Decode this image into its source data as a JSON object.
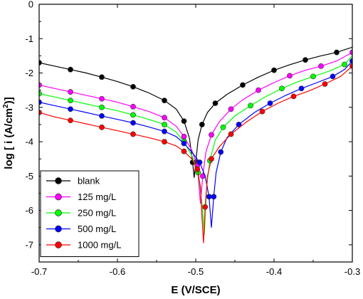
{
  "chart_data": {
    "type": "line",
    "title": "",
    "xlabel": "E (V/SCE)",
    "ylabel_main": "log [ i (A/cm",
    "ylabel_sup": "2",
    "ylabel_tail": ")]",
    "xlim": [
      -0.7,
      -0.3
    ],
    "ylim": [
      -7.5,
      0
    ],
    "x_ticks": [
      "-0.7",
      "-0.6",
      "-0.5",
      "-0.4",
      "-0.3"
    ],
    "x_tick_values": [
      -0.7,
      -0.6,
      -0.5,
      -0.4,
      -0.3
    ],
    "y_ticks": [
      "0",
      "-1",
      "-2",
      "-3",
      "-4",
      "-5",
      "-6",
      "-7"
    ],
    "y_tick_values": [
      0,
      -1,
      -2,
      -3,
      -4,
      -5,
      -6,
      -7
    ],
    "grid": false,
    "legend_position": "bottom-left",
    "series": [
      {
        "name": "blank",
        "color": "#000000",
        "points": [
          [
            -0.7,
            -1.7
          ],
          [
            -0.68,
            -1.8
          ],
          [
            -0.66,
            -1.9
          ],
          [
            -0.64,
            -2.0
          ],
          [
            -0.62,
            -2.12
          ],
          [
            -0.6,
            -2.25
          ],
          [
            -0.58,
            -2.4
          ],
          [
            -0.56,
            -2.58
          ],
          [
            -0.54,
            -2.8
          ],
          [
            -0.525,
            -3.05
          ],
          [
            -0.515,
            -3.4
          ],
          [
            -0.508,
            -3.9
          ],
          [
            -0.504,
            -4.6
          ],
          [
            -0.502,
            -5.05
          ],
          [
            -0.5,
            -4.6
          ],
          [
            -0.497,
            -3.95
          ],
          [
            -0.492,
            -3.5
          ],
          [
            -0.485,
            -3.15
          ],
          [
            -0.475,
            -2.88
          ],
          [
            -0.46,
            -2.62
          ],
          [
            -0.44,
            -2.35
          ],
          [
            -0.42,
            -2.12
          ],
          [
            -0.4,
            -1.92
          ],
          [
            -0.38,
            -1.76
          ],
          [
            -0.36,
            -1.62
          ],
          [
            -0.34,
            -1.5
          ],
          [
            -0.32,
            -1.4
          ],
          [
            -0.3,
            -1.25
          ]
        ]
      },
      {
        "name": "125  mg/L",
        "color": "#ff00ff",
        "points": [
          [
            -0.7,
            -2.35
          ],
          [
            -0.68,
            -2.45
          ],
          [
            -0.66,
            -2.55
          ],
          [
            -0.64,
            -2.65
          ],
          [
            -0.62,
            -2.75
          ],
          [
            -0.6,
            -2.85
          ],
          [
            -0.58,
            -2.98
          ],
          [
            -0.56,
            -3.12
          ],
          [
            -0.54,
            -3.3
          ],
          [
            -0.525,
            -3.55
          ],
          [
            -0.515,
            -3.85
          ],
          [
            -0.505,
            -4.25
          ],
          [
            -0.498,
            -4.7
          ],
          [
            -0.494,
            -5.8
          ],
          [
            -0.491,
            -5.0
          ],
          [
            -0.487,
            -4.3
          ],
          [
            -0.48,
            -3.8
          ],
          [
            -0.47,
            -3.42
          ],
          [
            -0.455,
            -3.05
          ],
          [
            -0.44,
            -2.78
          ],
          [
            -0.42,
            -2.5
          ],
          [
            -0.4,
            -2.28
          ],
          [
            -0.38,
            -2.08
          ],
          [
            -0.36,
            -1.92
          ],
          [
            -0.34,
            -1.8
          ],
          [
            -0.32,
            -1.65
          ],
          [
            -0.3,
            -1.4
          ]
        ]
      },
      {
        "name": "250  mg/L",
        "color": "#00ff00",
        "points": [
          [
            -0.7,
            -2.6
          ],
          [
            -0.68,
            -2.7
          ],
          [
            -0.66,
            -2.8
          ],
          [
            -0.64,
            -2.9
          ],
          [
            -0.62,
            -3.0
          ],
          [
            -0.6,
            -3.1
          ],
          [
            -0.58,
            -3.22
          ],
          [
            -0.56,
            -3.35
          ],
          [
            -0.54,
            -3.5
          ],
          [
            -0.525,
            -3.72
          ],
          [
            -0.515,
            -4.0
          ],
          [
            -0.505,
            -4.4
          ],
          [
            -0.497,
            -4.9
          ],
          [
            -0.492,
            -5.8
          ],
          [
            -0.489,
            -6.7
          ],
          [
            -0.486,
            -5.3
          ],
          [
            -0.482,
            -4.55
          ],
          [
            -0.475,
            -3.95
          ],
          [
            -0.465,
            -3.58
          ],
          [
            -0.45,
            -3.25
          ],
          [
            -0.43,
            -2.95
          ],
          [
            -0.41,
            -2.68
          ],
          [
            -0.39,
            -2.45
          ],
          [
            -0.37,
            -2.26
          ],
          [
            -0.35,
            -2.1
          ],
          [
            -0.33,
            -1.95
          ],
          [
            -0.31,
            -1.75
          ],
          [
            -0.3,
            -1.5
          ]
        ]
      },
      {
        "name": "500  mg/L",
        "color": "#0000ff",
        "points": [
          [
            -0.7,
            -2.85
          ],
          [
            -0.68,
            -2.95
          ],
          [
            -0.66,
            -3.05
          ],
          [
            -0.64,
            -3.15
          ],
          [
            -0.62,
            -3.25
          ],
          [
            -0.6,
            -3.35
          ],
          [
            -0.58,
            -3.45
          ],
          [
            -0.56,
            -3.57
          ],
          [
            -0.54,
            -3.7
          ],
          [
            -0.525,
            -3.85
          ],
          [
            -0.515,
            -4.05
          ],
          [
            -0.505,
            -4.3
          ],
          [
            -0.495,
            -4.6
          ],
          [
            -0.488,
            -5.0
          ],
          [
            -0.483,
            -5.6
          ],
          [
            -0.48,
            -6.5
          ],
          [
            -0.477,
            -5.6
          ],
          [
            -0.474,
            -4.9
          ],
          [
            -0.468,
            -4.3
          ],
          [
            -0.46,
            -3.88
          ],
          [
            -0.445,
            -3.5
          ],
          [
            -0.425,
            -3.15
          ],
          [
            -0.405,
            -2.88
          ],
          [
            -0.385,
            -2.65
          ],
          [
            -0.365,
            -2.45
          ],
          [
            -0.345,
            -2.28
          ],
          [
            -0.325,
            -2.1
          ],
          [
            -0.31,
            -1.9
          ],
          [
            -0.3,
            -1.65
          ]
        ]
      },
      {
        "name": "1000 mg/L",
        "color": "#ff0000",
        "points": [
          [
            -0.7,
            -3.15
          ],
          [
            -0.68,
            -3.28
          ],
          [
            -0.66,
            -3.38
          ],
          [
            -0.64,
            -3.48
          ],
          [
            -0.62,
            -3.58
          ],
          [
            -0.6,
            -3.68
          ],
          [
            -0.58,
            -3.78
          ],
          [
            -0.56,
            -3.88
          ],
          [
            -0.54,
            -4.0
          ],
          [
            -0.525,
            -4.12
          ],
          [
            -0.515,
            -4.28
          ],
          [
            -0.505,
            -4.5
          ],
          [
            -0.498,
            -4.8
          ],
          [
            -0.494,
            -5.3
          ],
          [
            -0.492,
            -6.2
          ],
          [
            -0.49,
            -6.95
          ],
          [
            -0.488,
            -5.9
          ],
          [
            -0.485,
            -5.0
          ],
          [
            -0.48,
            -4.5
          ],
          [
            -0.47,
            -4.15
          ],
          [
            -0.455,
            -3.78
          ],
          [
            -0.435,
            -3.42
          ],
          [
            -0.415,
            -3.12
          ],
          [
            -0.395,
            -2.88
          ],
          [
            -0.375,
            -2.68
          ],
          [
            -0.355,
            -2.52
          ],
          [
            -0.335,
            -2.32
          ],
          [
            -0.315,
            -2.1
          ],
          [
            -0.3,
            -1.8
          ]
        ]
      }
    ]
  }
}
